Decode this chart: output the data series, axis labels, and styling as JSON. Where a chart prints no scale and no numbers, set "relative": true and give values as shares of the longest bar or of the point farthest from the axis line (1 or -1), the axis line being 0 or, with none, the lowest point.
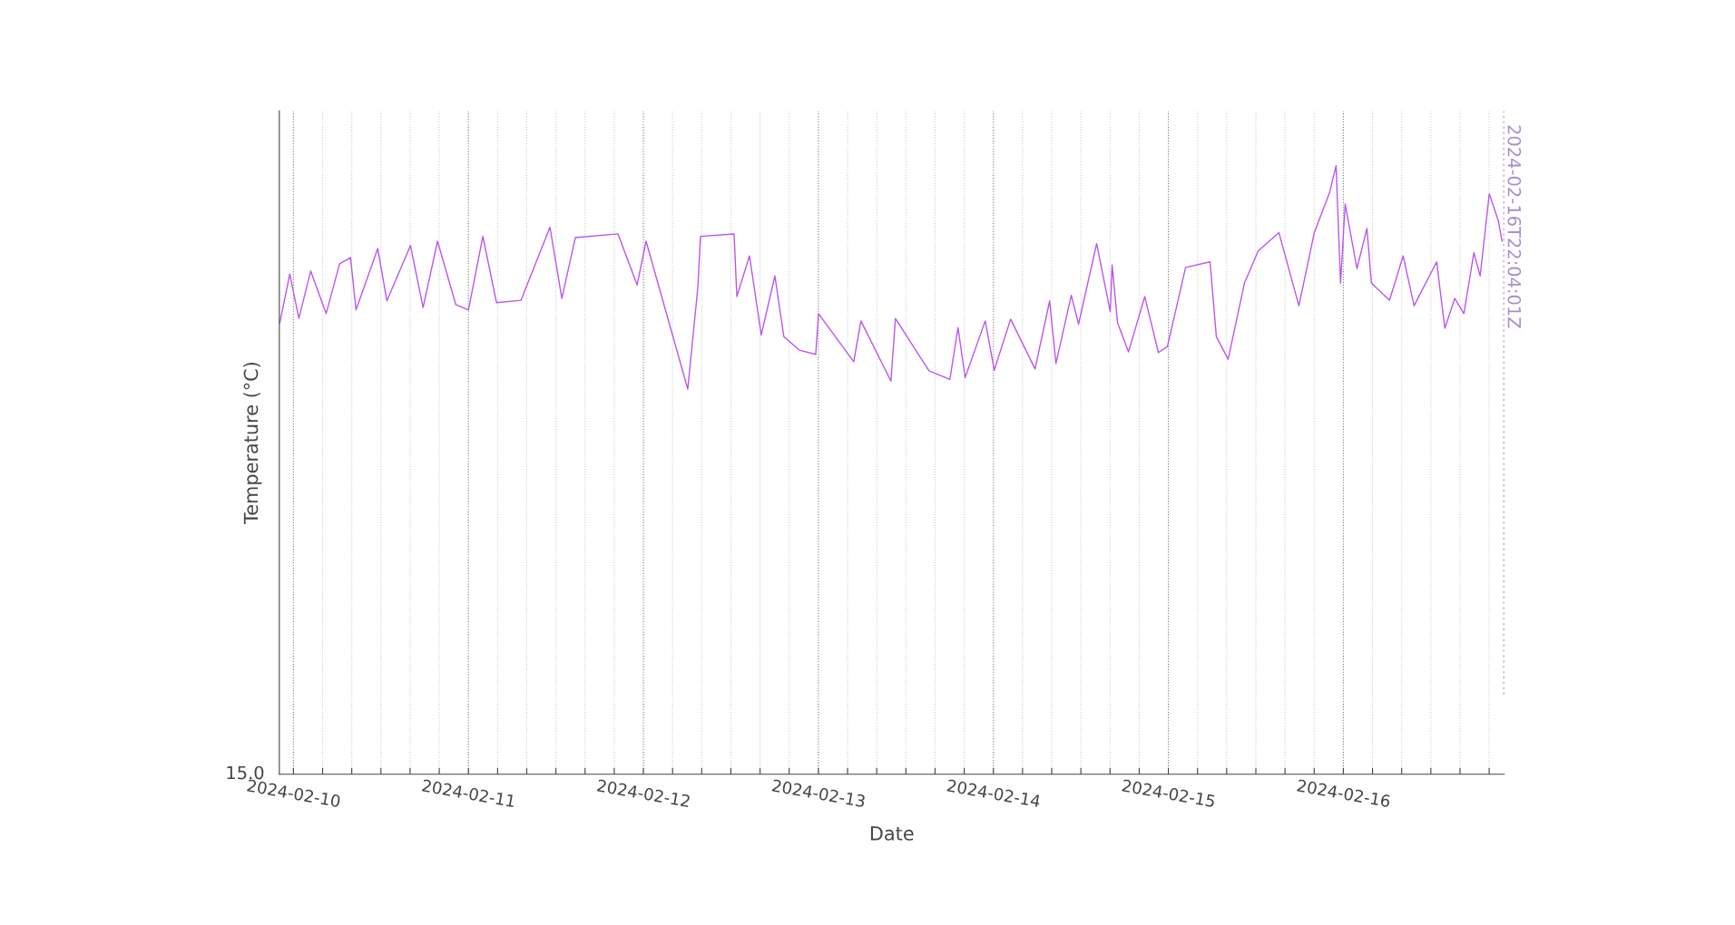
{
  "chart_data": {
    "type": "line",
    "relative": true,
    "xlabel": "Date",
    "ylabel": "Temperature (°C)",
    "annotations": [
      "15.0"
    ],
    "xlim": [
      "2024-02-09T22:04",
      "2024-02-16T22:04"
    ],
    "xticks": [
      {
        "value": "2024-02-10T00:00",
        "label": "2024-02-10"
      },
      {
        "value": "2024-02-10T04:00",
        "label": null
      },
      {
        "value": "2024-02-10T08:00",
        "label": null
      },
      {
        "value": "2024-02-10T12:00",
        "label": null
      },
      {
        "value": "2024-02-10T16:00",
        "label": null
      },
      {
        "value": "2024-02-10T20:00",
        "label": null
      },
      {
        "value": "2024-02-11T00:00",
        "label": "2024-02-11"
      },
      {
        "value": "2024-02-11T04:00",
        "label": null
      },
      {
        "value": "2024-02-11T08:00",
        "label": null
      },
      {
        "value": "2024-02-11T12:00",
        "label": null
      },
      {
        "value": "2024-02-11T16:00",
        "label": null
      },
      {
        "value": "2024-02-11T20:00",
        "label": null
      },
      {
        "value": "2024-02-12T00:00",
        "label": "2024-02-12"
      },
      {
        "value": "2024-02-12T04:00",
        "label": null
      },
      {
        "value": "2024-02-12T08:00",
        "label": null
      },
      {
        "value": "2024-02-12T12:00",
        "label": null
      },
      {
        "value": "2024-02-12T16:00",
        "label": null
      },
      {
        "value": "2024-02-12T20:00",
        "label": null
      },
      {
        "value": "2024-02-13T00:00",
        "label": "2024-02-13"
      },
      {
        "value": "2024-02-13T04:00",
        "label": null
      },
      {
        "value": "2024-02-13T08:00",
        "label": null
      },
      {
        "value": "2024-02-13T12:00",
        "label": null
      },
      {
        "value": "2024-02-13T16:00",
        "label": null
      },
      {
        "value": "2024-02-13T20:00",
        "label": null
      },
      {
        "value": "2024-02-14T00:00",
        "label": "2024-02-14"
      },
      {
        "value": "2024-02-14T04:00",
        "label": null
      },
      {
        "value": "2024-02-14T08:00",
        "label": null
      },
      {
        "value": "2024-02-14T12:00",
        "label": null
      },
      {
        "value": "2024-02-14T16:00",
        "label": null
      },
      {
        "value": "2024-02-14T20:00",
        "label": null
      },
      {
        "value": "2024-02-15T00:00",
        "label": "2024-02-15"
      },
      {
        "value": "2024-02-15T04:00",
        "label": null
      },
      {
        "value": "2024-02-15T08:00",
        "label": null
      },
      {
        "value": "2024-02-15T12:00",
        "label": null
      },
      {
        "value": "2024-02-15T16:00",
        "label": null
      },
      {
        "value": "2024-02-15T20:00",
        "label": null
      },
      {
        "value": "2024-02-16T00:00",
        "label": "2024-02-16"
      },
      {
        "value": "2024-02-16T04:00",
        "label": null
      },
      {
        "value": "2024-02-16T08:00",
        "label": null
      },
      {
        "value": "2024-02-16T12:00",
        "label": null
      },
      {
        "value": "2024-02-16T16:00",
        "label": null
      },
      {
        "value": "2024-02-16T20:00",
        "label": null
      }
    ],
    "grid": "x",
    "ref_lines": [
      {
        "axis": "x",
        "value": "2024-02-16T22:04:01",
        "label": "2024-02-16T22:04:01Z",
        "color": "#a58fd0",
        "line_style": "dotted"
      }
    ],
    "x": [
      "2024-02-09T22:08",
      "2024-02-09T23:30",
      "2024-02-10T00:45",
      "2024-02-10T02:22",
      "2024-02-10T04:29",
      "2024-02-10T06:20",
      "2024-02-10T07:50",
      "2024-02-10T08:35",
      "2024-02-10T11:34",
      "2024-02-10T12:49",
      "2024-02-10T16:03",
      "2024-02-10T17:47",
      "2024-02-10T19:46",
      "2024-02-10T22:16",
      "2024-02-11T00:00",
      "2024-02-11T01:59",
      "2024-02-11T03:51",
      "2024-02-11T07:13",
      "2024-02-11T11:11",
      "2024-02-11T12:49",
      "2024-02-11T14:40",
      "2024-02-11T20:31",
      "2024-02-11T23:08",
      "2024-02-12T00:22",
      "2024-02-12T06:05",
      "2024-02-12T07:28",
      "2024-02-12T07:50",
      "2024-02-12T12:26",
      "2024-02-12T12:49",
      "2024-02-12T14:33",
      "2024-02-12T16:10",
      "2024-02-12T18:02",
      "2024-02-12T19:16",
      "2024-02-12T21:23",
      "2024-02-12T23:38",
      "2024-02-13T00:01",
      "2024-02-13T04:51",
      "2024-02-13T05:50",
      "2024-02-13T09:57",
      "2024-02-13T10:34",
      "2024-02-13T15:10",
      "2024-02-13T18:02",
      "2024-02-13T19:09",
      "2024-02-13T20:08",
      "2024-02-13T22:53",
      "2024-02-14T00:07",
      "2024-02-14T02:22",
      "2024-02-14T05:43",
      "2024-02-14T07:43",
      "2024-02-14T08:35",
      "2024-02-14T10:41",
      "2024-02-14T11:41",
      "2024-02-14T14:10",
      "2024-02-14T16:02",
      "2024-02-14T16:17",
      "2024-02-14T17:02",
      "2024-02-14T18:32",
      "2024-02-14T20:46",
      "2024-02-14T22:38",
      "2024-02-14T23:52",
      "2024-02-15T02:22",
      "2024-02-15T05:43",
      "2024-02-15T06:35",
      "2024-02-15T08:12",
      "2024-02-15T10:26",
      "2024-02-15T12:19",
      "2024-02-15T15:10",
      "2024-02-15T17:54",
      "2024-02-15T20:01",
      "2024-02-15T22:08",
      "2024-02-15T23:00",
      "2024-02-15T23:37",
      "2024-02-16T00:15",
      "2024-02-16T01:52",
      "2024-02-16T03:14",
      "2024-02-16T03:51",
      "2024-02-16T06:20",
      "2024-02-16T08:12",
      "2024-02-16T09:42",
      "2024-02-16T12:48",
      "2024-02-16T13:55",
      "2024-02-16T15:17",
      "2024-02-16T16:32",
      "2024-02-16T17:54",
      "2024-02-16T18:46",
      "2024-02-16T20:01",
      "2024-02-16T21:16",
      "2024-02-16T21:46"
    ],
    "series": [
      {
        "color": "#bb55ee",
        "values": [
          0.742,
          0.822,
          0.749,
          0.827,
          0.757,
          0.839,
          0.849,
          0.763,
          0.864,
          0.778,
          0.869,
          0.767,
          0.876,
          0.772,
          0.763,
          0.884,
          0.775,
          0.779,
          0.899,
          0.782,
          0.882,
          0.888,
          0.804,
          0.876,
          0.633,
          0.8,
          0.884,
          0.888,
          0.785,
          0.852,
          0.722,
          0.819,
          0.719,
          0.697,
          0.69,
          0.757,
          0.678,
          0.745,
          0.646,
          0.749,
          0.663,
          0.649,
          0.734,
          0.652,
          0.745,
          0.664,
          0.748,
          0.666,
          0.778,
          0.675,
          0.787,
          0.74,
          0.872,
          0.76,
          0.837,
          0.742,
          0.694,
          0.785,
          0.693,
          0.703,
          0.833,
          0.842,
          0.719,
          0.682,
          0.807,
          0.86,
          0.89,
          0.77,
          0.89,
          0.957,
          1,
          0.807,
          0.937,
          0.831,
          0.897,
          0.807,
          0.779,
          0.852,
          0.77,
          0.842,
          0.733,
          0.782,
          0.757,
          0.857,
          0.819,
          0.954,
          0.909,
          0.876
        ]
      }
    ]
  }
}
